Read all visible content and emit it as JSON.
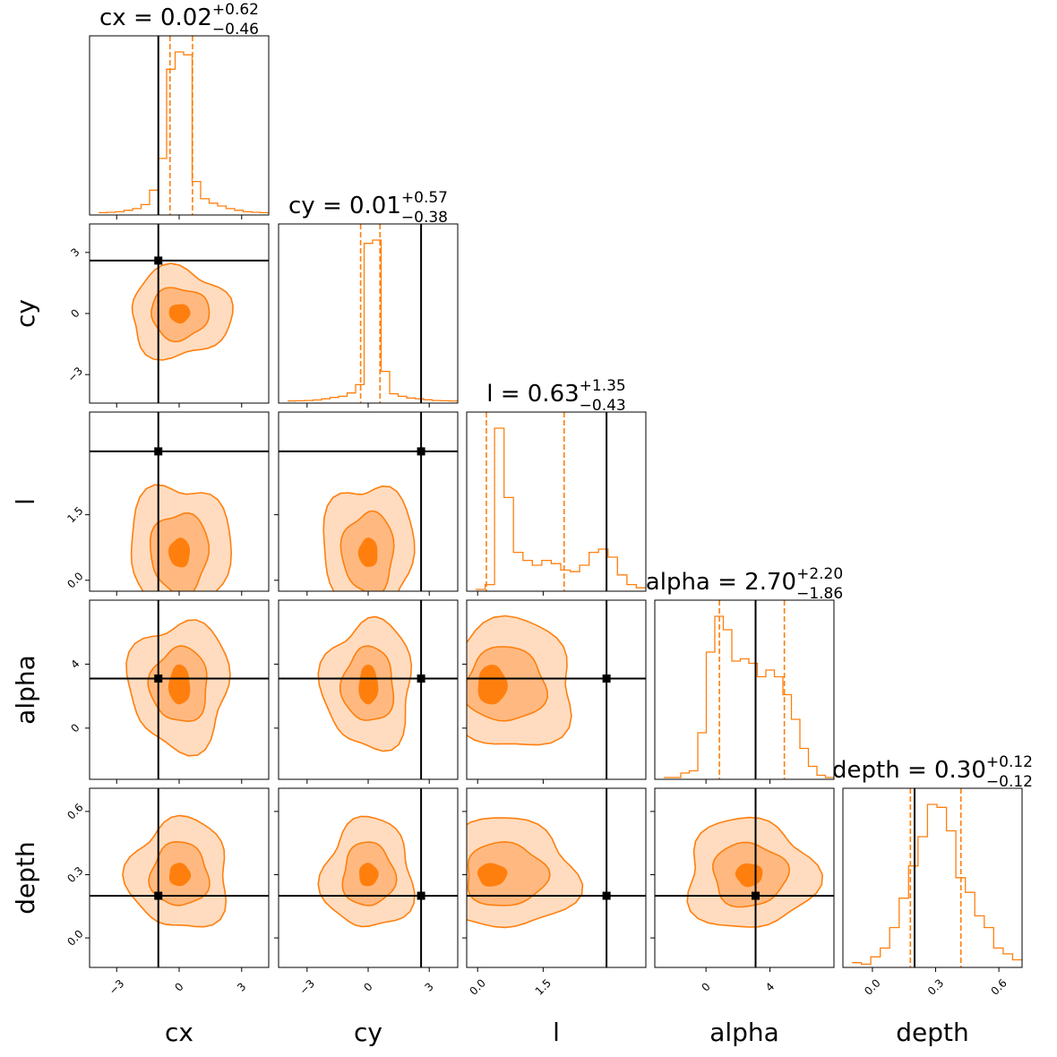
{
  "chart_data": {
    "type": "corner",
    "parameters": [
      "cx",
      "cy",
      "l",
      "alpha",
      "depth"
    ],
    "axis_labels": [
      "cx",
      "cy",
      "l",
      "alpha",
      "depth"
    ],
    "ranges": [
      [
        -4.3,
        4.3
      ],
      [
        -4.4,
        4.4
      ],
      [
        -0.25,
        3.85
      ],
      [
        -3.2,
        8.0
      ],
      [
        -0.14,
        0.71
      ]
    ],
    "ticks": [
      {
        "values": [
          -3,
          0,
          3
        ],
        "labels": [
          "−3",
          "0",
          "3"
        ]
      },
      {
        "values": [
          -3,
          0,
          3
        ],
        "labels": [
          "−3",
          "0",
          "3"
        ]
      },
      {
        "values": [
          0.0,
          1.5
        ],
        "labels": [
          "0.0",
          "1.5"
        ]
      },
      {
        "values": [
          0,
          4
        ],
        "labels": [
          "0",
          "4"
        ]
      },
      {
        "values": [
          0.0,
          0.3,
          0.6
        ],
        "labels": [
          "0.0",
          "0.3",
          "0.6"
        ]
      }
    ],
    "truths": [
      -1.0,
      2.6,
      2.95,
      3.1,
      0.2
    ],
    "medians": [
      0.02,
      0.01,
      0.63,
      2.7,
      0.3
    ],
    "lower_quantiles": [
      -0.44,
      -0.37,
      0.2,
      0.84,
      0.18
    ],
    "upper_quantiles": [
      0.64,
      0.58,
      1.98,
      4.9,
      0.42
    ],
    "titles": [
      {
        "name": "cx",
        "value": "0.02",
        "plus": "+0.62",
        "minus": "−0.46"
      },
      {
        "name": "cy",
        "value": "0.01",
        "plus": "+0.57",
        "minus": "−0.38"
      },
      {
        "name": "l",
        "value": "0.63",
        "plus": "+1.35",
        "minus": "−0.43"
      },
      {
        "name": "alpha",
        "value": "2.70",
        "plus": "+2.20",
        "minus": "−1.86"
      },
      {
        "name": "depth",
        "value": "0.30",
        "plus": "+0.12",
        "minus": "−0.12"
      }
    ],
    "histograms": [
      {
        "values": [
          0.2,
          0.3,
          0.5,
          1.0,
          1.6,
          3.0,
          8.0,
          19.0,
          50.0,
          56.0,
          55.0,
          11.0,
          5.0,
          3.5,
          2.5,
          1.6,
          1.0,
          0.5,
          0.3,
          0.2
        ]
      },
      {
        "values": [
          0.2,
          0.3,
          0.5,
          0.8,
          1.5,
          2.3,
          3.0,
          5.0,
          10.0,
          95.0,
          97.0,
          18.0,
          4.5,
          3.0,
          2.0,
          1.5,
          0.9,
          0.5,
          0.3,
          0.2
        ]
      },
      {
        "values": [
          0,
          3,
          100,
          57,
          23,
          18,
          15,
          18,
          16,
          12,
          11,
          15,
          23,
          25,
          20,
          9,
          3,
          1
        ]
      },
      {
        "values": [
          0,
          0,
          2,
          3,
          20,
          56,
          72,
          66,
          52,
          53,
          51,
          45,
          48,
          45,
          37,
          26,
          13,
          5,
          1,
          0
        ]
      },
      {
        "values": [
          1,
          0.5,
          3,
          6,
          13,
          23,
          34,
          44,
          55,
          54,
          46,
          30,
          25,
          17,
          13,
          6,
          4,
          2
        ]
      }
    ],
    "contour_style": {
      "line": "#ff7f0e",
      "fills": [
        "#ffdcbf",
        "#ffb980",
        "#ff7f0e"
      ]
    }
  }
}
